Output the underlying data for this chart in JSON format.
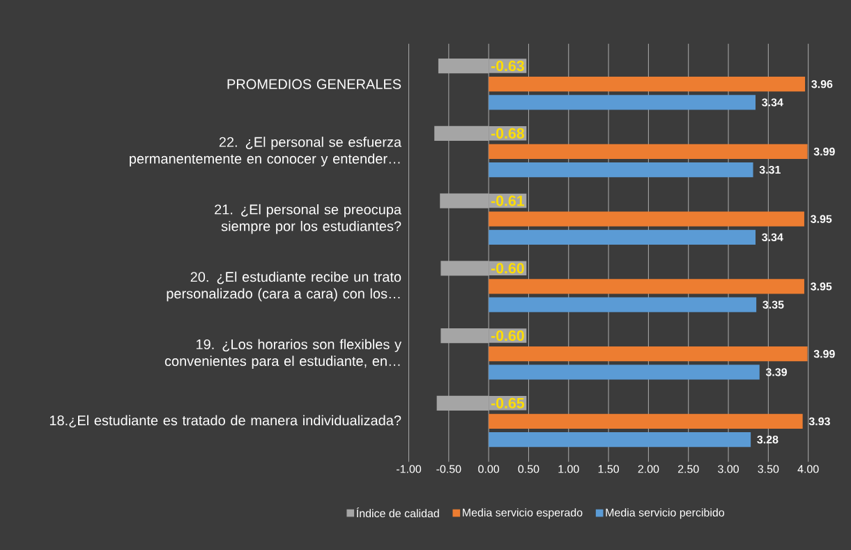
{
  "chart_data": {
    "type": "bar",
    "orientation": "horizontal",
    "categories": [
      "PROMEDIOS GENERALES",
      "22. ¿El personal se esfuerza permanentemente en conocer y entender…",
      "21. ¿El personal se preocupa siempre por los estudiantes?",
      "20. ¿El estudiante recibe un trato personalizado (cara a cara) con los…",
      "19. ¿Los horarios son flexibles y convenientes para el estudiante, en…",
      "18.¿El estudiante es tratado de manera individualizada?"
    ],
    "series": [
      {
        "name": "Índice de calidad",
        "color": "#a5a5a5",
        "values": [
          -0.63,
          -0.68,
          -0.61,
          -0.6,
          -0.6,
          -0.65
        ],
        "value_labels": [
          "-0.63",
          "-0.68",
          "-0.61",
          "-0.60",
          "-0.60",
          "-0.65"
        ]
      },
      {
        "name": "Media servicio esperado",
        "color": "#ed7d31",
        "values": [
          3.96,
          3.99,
          3.95,
          3.95,
          3.99,
          3.93
        ],
        "value_labels": [
          "3.96",
          "3.99",
          "3.95",
          "3.95",
          "3.99",
          "3.93"
        ]
      },
      {
        "name": "Media servicio percibido",
        "color": "#5b9bd5",
        "values": [
          3.34,
          3.31,
          3.34,
          3.35,
          3.39,
          3.28
        ],
        "value_labels": [
          "3.34",
          "3.31",
          "3.34",
          "3.35",
          "3.39",
          "3.28"
        ]
      }
    ],
    "xlim": [
      -1,
      4
    ],
    "xticks": [
      {
        "value": -1,
        "label": "-1.00"
      },
      {
        "value": -0.5,
        "label": "-0.50"
      },
      {
        "value": 0,
        "label": "0.00"
      },
      {
        "value": 0.5,
        "label": "0.50"
      },
      {
        "value": 1,
        "label": "1.00"
      },
      {
        "value": 1.5,
        "label": "1.50"
      },
      {
        "value": 2,
        "label": "2.00"
      },
      {
        "value": 2.5,
        "label": "2.50"
      },
      {
        "value": 3,
        "label": "3.00"
      },
      {
        "value": 3.5,
        "label": "3.50"
      },
      {
        "value": 4,
        "label": "4.00"
      }
    ],
    "grid": "x",
    "legend": "bottom"
  }
}
